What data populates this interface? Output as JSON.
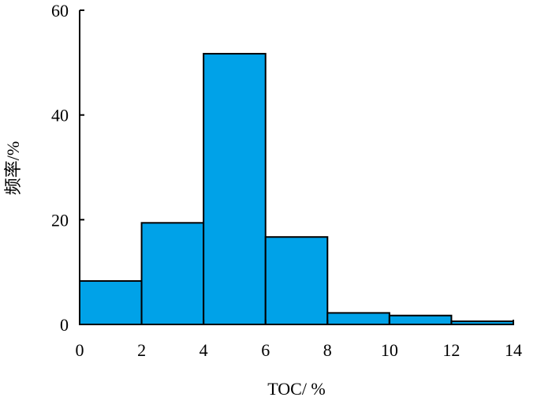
{
  "chart_data": {
    "type": "bar",
    "xlabel": "TOC/ %",
    "ylabel": "频率/%",
    "xlim": [
      0,
      14
    ],
    "ylim": [
      0,
      60
    ],
    "x_ticks": [
      "0",
      "2",
      "4",
      "6",
      "8",
      "10",
      "12",
      "14"
    ],
    "y_ticks": [
      "0",
      "20",
      "40",
      "60"
    ],
    "bins": [
      {
        "from": 0,
        "to": 2,
        "value": 8.3
      },
      {
        "from": 2,
        "to": 4,
        "value": 19.4
      },
      {
        "from": 4,
        "to": 6,
        "value": 51.7
      },
      {
        "from": 6,
        "to": 8,
        "value": 16.7
      },
      {
        "from": 8,
        "to": 10,
        "value": 2.2
      },
      {
        "from": 10,
        "to": 12,
        "value": 1.7
      },
      {
        "from": 12,
        "to": 14,
        "value": 0.6
      }
    ],
    "bar_color": "#00A2E8",
    "edge_color": "#000000",
    "grid": false
  }
}
